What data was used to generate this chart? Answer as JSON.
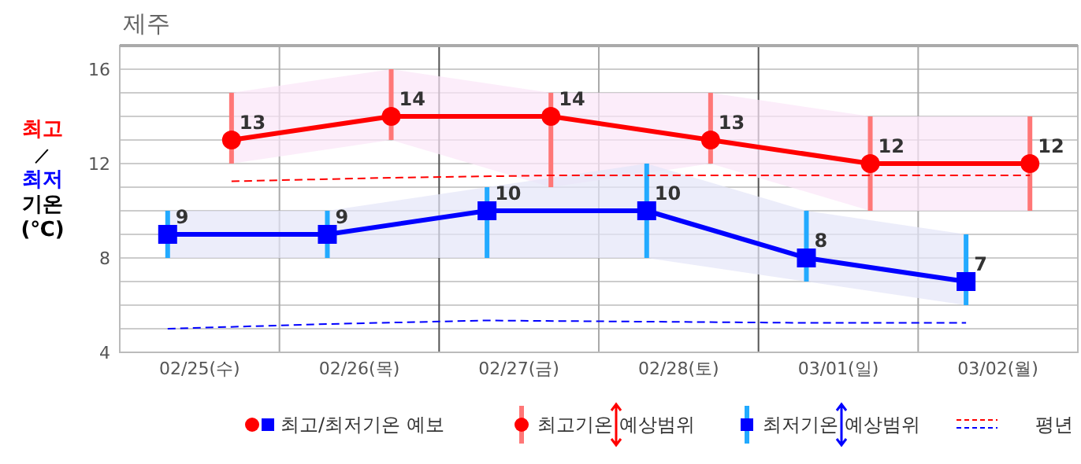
{
  "chart_data": {
    "type": "line",
    "title": "제주",
    "ylabel": "최고\n／\n최저\n기온\n(℃)",
    "categories": [
      "02/25(수)",
      "02/26(목)",
      "02/27(금)",
      "02/28(토)",
      "03/01(일)",
      "03/02(월)"
    ],
    "ylim": [
      4,
      17
    ],
    "yticks": [
      4,
      {
        "value": 5,
        "label": null
      },
      {
        "value": 6,
        "label": null
      },
      {
        "value": 7,
        "label": null
      },
      8,
      {
        "value": 9,
        "label": null
      },
      {
        "value": 10,
        "label": null
      },
      {
        "value": 11,
        "label": null
      },
      12,
      {
        "value": 13,
        "label": null
      },
      {
        "value": 14,
        "label": null
      },
      {
        "value": 15,
        "label": null
      },
      16
    ],
    "grid": true,
    "series": [
      {
        "color": "#ff0000",
        "marker": "circle",
        "values": [
          13,
          14,
          14,
          13,
          12,
          12
        ],
        "value_labels": [
          "13",
          "14",
          "14",
          "13",
          "12",
          "12"
        ],
        "lower": [
          12,
          13,
          11,
          12,
          10,
          10
        ],
        "upper": [
          15,
          16,
          15,
          15,
          14,
          14
        ]
      },
      {
        "color": "#0000ff",
        "marker": "square",
        "values": [
          9,
          9,
          10,
          10,
          8,
          7
        ],
        "value_labels": [
          "9",
          "9",
          "10",
          "10",
          "8",
          "7"
        ],
        "lower": [
          8,
          8,
          8,
          8,
          7,
          6
        ],
        "upper": [
          10,
          10,
          11,
          12,
          10,
          9
        ]
      },
      {
        "color": "#ff0000",
        "line_style": "dashed",
        "values": [
          11.25,
          11.4,
          11.5,
          11.5,
          11.5,
          11.5
        ]
      },
      {
        "color": "#0000ff",
        "line_style": "dashed",
        "values": [
          5.0,
          5.2,
          5.35,
          5.3,
          5.25,
          5.25
        ]
      }
    ],
    "annotations": [
      "최고/최저기온 예보",
      "최고기온 예상범위",
      "최저기온 예상범위",
      "평년"
    ]
  }
}
